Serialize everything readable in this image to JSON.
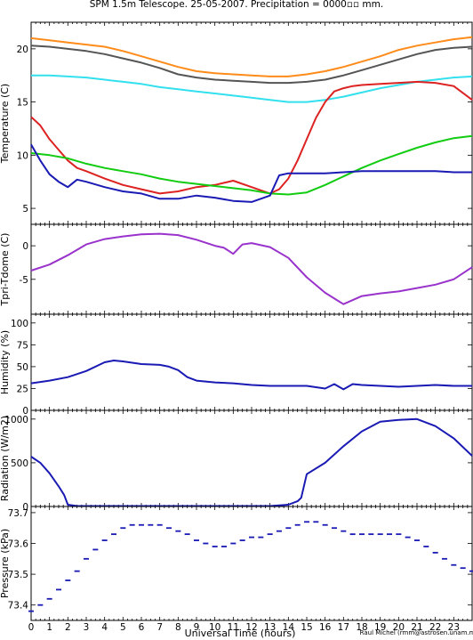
{
  "title": "SPM 1.5m Telescope. 25-05-2007. Precipitation = 0000▫▫ mm.",
  "credit": "Raul Michel  (rmm@astrosen.unam.mx)",
  "xlabel": "Universal Time (hours)",
  "chart_data": [
    {
      "type": "line",
      "ylabel": "Temperature (C)",
      "xlim": [
        0,
        24
      ],
      "ylim": [
        3.5,
        22.5
      ],
      "yticks": [
        5,
        10,
        15,
        20
      ],
      "series": [
        {
          "color": "#ff8c1a",
          "x": [
            0,
            1,
            2,
            3,
            4,
            5,
            6,
            7,
            8,
            9,
            10,
            11,
            12,
            13,
            14,
            15,
            16,
            17,
            18,
            19,
            20,
            21,
            22,
            23,
            24
          ],
          "y": [
            21.0,
            20.8,
            20.6,
            20.4,
            20.2,
            19.8,
            19.3,
            18.8,
            18.3,
            17.9,
            17.7,
            17.6,
            17.5,
            17.4,
            17.4,
            17.6,
            17.9,
            18.3,
            18.8,
            19.3,
            19.9,
            20.3,
            20.6,
            20.9,
            21.1
          ]
        },
        {
          "color": "#555555",
          "x": [
            0,
            1,
            2,
            3,
            4,
            5,
            6,
            7,
            8,
            9,
            10,
            11,
            12,
            13,
            14,
            15,
            16,
            17,
            18,
            19,
            20,
            21,
            22,
            23,
            24
          ],
          "y": [
            20.3,
            20.2,
            20.0,
            19.8,
            19.5,
            19.1,
            18.7,
            18.2,
            17.6,
            17.3,
            17.1,
            17.0,
            16.9,
            16.8,
            16.8,
            16.9,
            17.1,
            17.5,
            18.0,
            18.5,
            19.0,
            19.5,
            19.9,
            20.1,
            20.2
          ]
        },
        {
          "color": "#33e0ee",
          "x": [
            0,
            1,
            2,
            3,
            4,
            5,
            6,
            7,
            8,
            9,
            10,
            11,
            12,
            13,
            14,
            15,
            16,
            17,
            18,
            19,
            20,
            21,
            22,
            23,
            24
          ],
          "y": [
            17.5,
            17.5,
            17.4,
            17.3,
            17.1,
            16.9,
            16.7,
            16.4,
            16.2,
            16.0,
            15.8,
            15.6,
            15.4,
            15.2,
            15.0,
            15.0,
            15.2,
            15.5,
            15.9,
            16.3,
            16.6,
            16.9,
            17.1,
            17.3,
            17.4
          ]
        },
        {
          "color": "#dd2222",
          "x": [
            0,
            0.5,
            1,
            1.5,
            2,
            2.5,
            3,
            4,
            5,
            6,
            7,
            8,
            9,
            10,
            11,
            12,
            13,
            13.5,
            14,
            14.5,
            15,
            15.5,
            16,
            16.5,
            17,
            17.5,
            18,
            19,
            20,
            21,
            22,
            23,
            24
          ],
          "y": [
            13.6,
            12.8,
            11.5,
            10.5,
            9.5,
            8.8,
            8.5,
            7.8,
            7.2,
            6.8,
            6.4,
            6.6,
            7.0,
            7.2,
            7.6,
            7.0,
            6.4,
            6.8,
            7.8,
            9.5,
            11.5,
            13.5,
            15.0,
            16.0,
            16.3,
            16.5,
            16.6,
            16.7,
            16.8,
            16.9,
            16.8,
            16.5,
            15.2
          ]
        },
        {
          "color": "#11cc11",
          "x": [
            0,
            1,
            2,
            3,
            4,
            5,
            6,
            7,
            8,
            9,
            10,
            11,
            12,
            13,
            14,
            15,
            16,
            17,
            18,
            19,
            20,
            21,
            22,
            23,
            24
          ],
          "y": [
            10.2,
            10.0,
            9.7,
            9.2,
            8.8,
            8.5,
            8.2,
            7.8,
            7.5,
            7.3,
            7.1,
            6.9,
            6.7,
            6.4,
            6.3,
            6.5,
            7.2,
            8.0,
            8.8,
            9.5,
            10.1,
            10.7,
            11.2,
            11.6,
            11.8
          ]
        },
        {
          "color": "#1a1ab4",
          "x": [
            0,
            0.5,
            1,
            1.5,
            2,
            2.5,
            3,
            4,
            5,
            6,
            7,
            8,
            9,
            10,
            11,
            12,
            13,
            13.5,
            14,
            15,
            16,
            17,
            18,
            19,
            20,
            21,
            22,
            23,
            24
          ],
          "y": [
            11.0,
            9.5,
            8.2,
            7.5,
            7.0,
            7.7,
            7.5,
            7.0,
            6.6,
            6.4,
            5.9,
            5.9,
            6.2,
            6.0,
            5.7,
            5.6,
            6.2,
            8.1,
            8.3,
            8.3,
            8.3,
            8.4,
            8.5,
            8.5,
            8.5,
            8.5,
            8.5,
            8.4,
            8.4
          ]
        }
      ]
    },
    {
      "type": "line",
      "ylabel": "Tpri-Tdome (C)",
      "xlim": [
        0,
        24
      ],
      "ylim": [
        -10.2,
        3.2
      ],
      "yticks": [
        -5,
        0
      ],
      "series": [
        {
          "color": "#9933cc",
          "x": [
            0,
            1,
            2,
            3,
            4,
            5,
            6,
            7,
            8,
            9,
            10,
            10.5,
            11,
            11.5,
            12,
            13,
            14,
            15,
            16,
            17,
            18,
            19,
            20,
            21,
            22,
            23,
            24
          ],
          "y": [
            -3.7,
            -2.8,
            -1.4,
            0.2,
            1.0,
            1.4,
            1.7,
            1.8,
            1.6,
            0.9,
            0.0,
            -0.3,
            -1.2,
            0.2,
            0.4,
            -0.2,
            -1.8,
            -4.7,
            -7.0,
            -8.7,
            -7.5,
            -7.1,
            -6.8,
            -6.3,
            -5.8,
            -5.0,
            -3.2
          ]
        }
      ]
    },
    {
      "type": "line",
      "ylabel": "Humidity (%)",
      "xlim": [
        0,
        24
      ],
      "ylim": [
        0,
        110
      ],
      "yticks": [
        0,
        25,
        50,
        75,
        100
      ],
      "series": [
        {
          "color": "#1a1ab4",
          "x": [
            0,
            1,
            2,
            3,
            4,
            4.5,
            5,
            6,
            7,
            7.5,
            8,
            8.5,
            9,
            10,
            11,
            12,
            13,
            14,
            15,
            16,
            16.5,
            17,
            17.5,
            18,
            19,
            20,
            21,
            22,
            23,
            24
          ],
          "y": [
            31,
            34,
            38,
            45,
            55,
            57,
            56,
            53,
            52,
            50,
            46,
            38,
            34,
            32,
            31,
            29,
            28,
            28,
            28,
            25,
            30,
            24,
            30,
            29,
            28,
            27,
            28,
            29,
            28,
            28
          ]
        }
      ]
    },
    {
      "type": "line",
      "ylabel": "Radiation (W/m2)",
      "xlim": [
        0,
        24
      ],
      "ylim": [
        0,
        1100
      ],
      "yticks": [
        0,
        500,
        1000
      ],
      "series": [
        {
          "color": "#1a1ab4",
          "x": [
            0,
            0.5,
            1,
            1.5,
            1.8,
            2,
            2.5,
            3,
            4,
            6,
            8,
            10,
            12,
            13,
            14,
            14.5,
            14.7,
            15,
            16,
            17,
            18,
            19,
            20,
            21,
            22,
            23,
            24
          ],
          "y": [
            570,
            500,
            380,
            230,
            130,
            20,
            5,
            5,
            5,
            5,
            5,
            5,
            5,
            5,
            20,
            60,
            100,
            370,
            500,
            690,
            860,
            970,
            990,
            1000,
            920,
            780,
            580
          ]
        }
      ]
    },
    {
      "type": "scatter",
      "ylabel": "Pressure (kPa)",
      "xlim": [
        0,
        24
      ],
      "ylim": [
        73.35,
        73.72
      ],
      "yticks": [
        73.4,
        73.5,
        73.6,
        73.7
      ],
      "series": [
        {
          "color": "#1a1ab4",
          "x": [
            0.0,
            0.5,
            1.0,
            1.5,
            2.0,
            2.5,
            3.0,
            3.5,
            4.0,
            4.5,
            5.0,
            5.5,
            6.0,
            6.5,
            7.0,
            7.5,
            8.0,
            8.5,
            9.0,
            9.5,
            10.0,
            10.5,
            11.0,
            11.5,
            12.0,
            12.5,
            13.0,
            13.5,
            14.0,
            14.5,
            15.0,
            15.5,
            16.0,
            16.5,
            17.0,
            17.5,
            18.0,
            18.5,
            19.0,
            19.5,
            20.0,
            20.5,
            21.0,
            21.5,
            22.0,
            22.5,
            23.0,
            23.5,
            24.0
          ],
          "y": [
            73.38,
            73.4,
            73.42,
            73.45,
            73.48,
            73.51,
            73.55,
            73.58,
            73.61,
            73.63,
            73.65,
            73.66,
            73.66,
            73.66,
            73.66,
            73.65,
            73.64,
            73.63,
            73.61,
            73.6,
            73.59,
            73.59,
            73.6,
            73.61,
            73.62,
            73.62,
            73.63,
            73.64,
            73.65,
            73.66,
            73.67,
            73.67,
            73.66,
            73.65,
            73.64,
            73.63,
            73.63,
            73.63,
            73.63,
            73.63,
            73.63,
            73.62,
            73.61,
            73.59,
            73.57,
            73.55,
            73.53,
            73.52,
            73.51
          ]
        }
      ]
    }
  ]
}
